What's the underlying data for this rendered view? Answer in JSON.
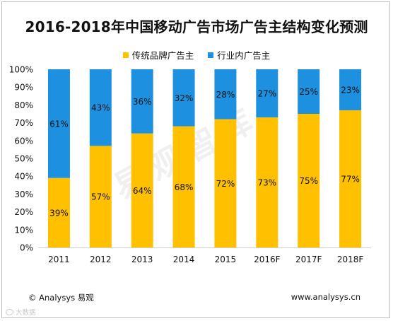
{
  "chart_data": {
    "type": "bar",
    "stacked": true,
    "title": "2016-2018年中国移动广告市场广告主结构变化预测",
    "categories": [
      "2011",
      "2012",
      "2013",
      "2014",
      "2015",
      "2016F",
      "2017F",
      "2018F"
    ],
    "series": [
      {
        "name": "传统品牌广告主",
        "color": "#FFC000",
        "values": [
          39,
          57,
          64,
          68,
          72,
          73,
          75,
          77
        ]
      },
      {
        "name": "行业内广告主",
        "color": "#1E90E0",
        "values": [
          61,
          43,
          36,
          32,
          28,
          27,
          25,
          23
        ]
      }
    ],
    "ylim": [
      0,
      100
    ],
    "y_ticks": [
      "0%",
      "10%",
      "20%",
      "30%",
      "40%",
      "50%",
      "60%",
      "70%",
      "80%",
      "90%",
      "100%"
    ],
    "value_suffix": "%",
    "legend_position": "top-center",
    "grid": false
  },
  "footer": {
    "source": "© Analysys 易观",
    "url": "www.analysys.cn"
  },
  "watermark": "易观智库",
  "bottom_mark": "大数据"
}
